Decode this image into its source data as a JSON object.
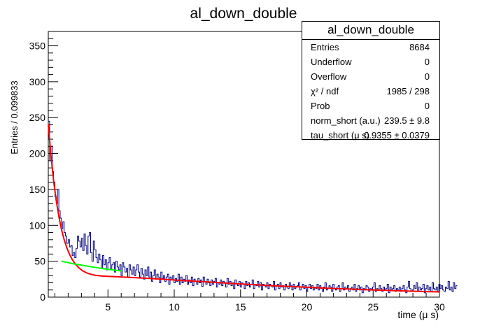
{
  "chart_data": {
    "type": "line",
    "title": "al_down_double",
    "xlabel": "time (μ s)",
    "ylabel": "Entries / 0.099833",
    "xlim": [
      0.5,
      30
    ],
    "ylim": [
      0,
      370
    ],
    "x_ticks": [
      5,
      10,
      15,
      20,
      25,
      30
    ],
    "y_ticks": [
      0,
      50,
      100,
      150,
      200,
      250,
      300,
      350
    ],
    "grid": false,
    "legend": "none",
    "series": [
      {
        "type": "histogram",
        "color": "#000080",
        "bin_width": 0.099833,
        "x_start": 0.5,
        "values": [
          245,
          190,
          210,
          175,
          160,
          140,
          130,
          150,
          120,
          110,
          95,
          105,
          90,
          85,
          75,
          80,
          70,
          72,
          58,
          62,
          55,
          68,
          85,
          78,
          70,
          82,
          65,
          88,
          72,
          60,
          85,
          90,
          62,
          50,
          78,
          66,
          55,
          48,
          60,
          52,
          40,
          58,
          45,
          52,
          38,
          48,
          55,
          40,
          45,
          48,
          35,
          50,
          42,
          38,
          45,
          30,
          48,
          42,
          35,
          40,
          28,
          45,
          38,
          32,
          42,
          30,
          38,
          45,
          35,
          28,
          40,
          32,
          25,
          38,
          30,
          42,
          28,
          35,
          22,
          30,
          38,
          25,
          32,
          28,
          20,
          35,
          26,
          30,
          22,
          28,
          32,
          18,
          28,
          24,
          30,
          20,
          26,
          22,
          32,
          18,
          28,
          20,
          25,
          22,
          30,
          18,
          24,
          20,
          28,
          16,
          25,
          22,
          18,
          26,
          20,
          24,
          15,
          28,
          22,
          18,
          25,
          20,
          16,
          24,
          18,
          22,
          26,
          14,
          20,
          18,
          24,
          16,
          22,
          20,
          14,
          26,
          18,
          22,
          16,
          20,
          12,
          24,
          18,
          16,
          22,
          14,
          20,
          18,
          12,
          22,
          16,
          20,
          14,
          18,
          24,
          12,
          18,
          16,
          22,
          14,
          20,
          10,
          18,
          16,
          14,
          20,
          12,
          18,
          16,
          14,
          22,
          10,
          16,
          18,
          12,
          20,
          14,
          16,
          10,
          18,
          14,
          12,
          20,
          16,
          10,
          18,
          12,
          14,
          16,
          20,
          10,
          14,
          18,
          12,
          16,
          8,
          14,
          18,
          12,
          16,
          10,
          14,
          12,
          18,
          10,
          16,
          12,
          8,
          14,
          20,
          10,
          12,
          16,
          14,
          8,
          18,
          12,
          10,
          14,
          16,
          8,
          12,
          20,
          10,
          14,
          12,
          16,
          8,
          12,
          14,
          10,
          18,
          8,
          12,
          16,
          10,
          14,
          6,
          12,
          10,
          16,
          14,
          8,
          12,
          10,
          14,
          20,
          8,
          12,
          10,
          16,
          12,
          8,
          14,
          10,
          12,
          18,
          6,
          14,
          10,
          12,
          16,
          8,
          12,
          10,
          14,
          8,
          12,
          16,
          10,
          6,
          14,
          22,
          12,
          8,
          10,
          16,
          12,
          20,
          8,
          14,
          10,
          12,
          18,
          6,
          12,
          16,
          10,
          14,
          8,
          20,
          12,
          10,
          14,
          8,
          18,
          12,
          16,
          10,
          8,
          14,
          12,
          22,
          10,
          14,
          8,
          20,
          12,
          16
        ]
      },
      {
        "type": "fit",
        "color": "#ff0000",
        "model": "double_exponential",
        "x": [
          0.5,
          0.7,
          0.9,
          1.1,
          1.3,
          1.5,
          1.7,
          1.9,
          2.1,
          2.3,
          2.5,
          2.8,
          3.1,
          3.5,
          4,
          4.5,
          5,
          6,
          7,
          8,
          9,
          10,
          11,
          12,
          13,
          14,
          15,
          16,
          17,
          18,
          19,
          20,
          21,
          22,
          23,
          24,
          25,
          26,
          27,
          28,
          29,
          30
        ],
        "y": [
          240.8,
          197.2,
          162.1,
          134.2,
          111.9,
          94.1,
          80,
          68.7,
          59.7,
          52.6,
          46.9,
          40.9,
          36.5,
          32.9,
          30.6,
          29.5,
          28.9,
          28.1,
          27.2,
          26.2,
          25.1,
          23.9,
          22.8,
          21.7,
          20.6,
          19.5,
          18.4,
          17.4,
          16.4,
          15.5,
          14.6,
          13.7,
          12.9,
          12.1,
          11.4,
          10.7,
          10,
          9.4,
          8.8,
          8.3,
          7.7,
          7.3
        ]
      },
      {
        "type": "fit",
        "color": "#00ff00",
        "model": "long_component",
        "x": [
          1.5,
          2,
          2.5,
          3,
          3.5,
          4,
          4.5,
          5,
          5.5,
          6
        ],
        "y": [
          50,
          48,
          46,
          44.5,
          43,
          41.5,
          40,
          38.8,
          37.6,
          36.5
        ]
      }
    ]
  },
  "stats": {
    "title": "al_down_double",
    "rows": [
      {
        "label": "Entries",
        "value": "8684"
      },
      {
        "label": "Underflow",
        "value": "0"
      },
      {
        "label": "Overflow",
        "value": "0"
      },
      {
        "label": "χ² / ndf",
        "value": "1985 / 298"
      },
      {
        "label": "Prob",
        "value": "0"
      },
      {
        "label": "norm_short (a.u.)",
        "value": "239.5 ± 9.8"
      },
      {
        "label": "tau_short (μ s)",
        "value": "0.9355 ± 0.0379"
      }
    ]
  }
}
